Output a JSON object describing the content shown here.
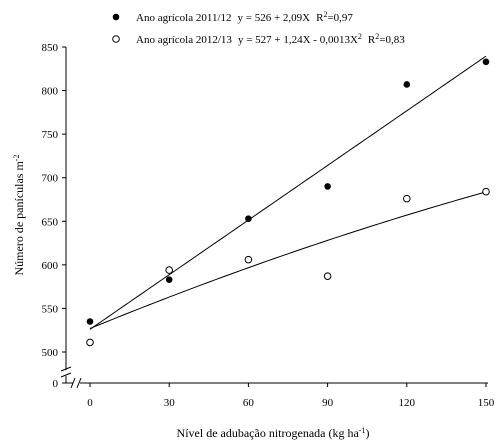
{
  "chart_data": {
    "type": "scatter",
    "xlabel_base": "Nível de adubação nitrogenada (kg ha",
    "xlabel_sup": "-1",
    "xlabel_end": ")",
    "ylabel_base": "Número de panículas m",
    "ylabel_sup": "-2",
    "x_ticks": [
      "0",
      "30",
      "60",
      "90",
      "120",
      "150"
    ],
    "y_ticks": [
      "0",
      "500",
      "550",
      "600",
      "650",
      "700",
      "750",
      "800",
      "850"
    ],
    "xlim": [
      0,
      150
    ],
    "ylim": [
      500,
      850
    ],
    "axis_break": true,
    "legend_position": "top",
    "series": [
      {
        "name": "Ano agrícola 2011/12",
        "marker": "filled-circle",
        "equation": "y = 526 + 2,09X",
        "r2_label": "R",
        "r2_sup": "2",
        "r2_value": "=0,97",
        "x": [
          0,
          30,
          60,
          90,
          120,
          150
        ],
        "y": [
          535,
          583,
          653,
          690,
          807,
          833
        ],
        "fit": {
          "type": "linear",
          "a": 526,
          "b": 2.09
        }
      },
      {
        "name": "Ano agrícola 2012/13",
        "marker": "open-circle",
        "equation_base": "y = 527 + 1,24X - 0,0013X",
        "equation_sup": "2",
        "r2_label": "R",
        "r2_sup": "2",
        "r2_value": "=0,83",
        "x": [
          0,
          30,
          60,
          90,
          120,
          150
        ],
        "y": [
          511,
          594,
          606,
          587,
          676,
          684
        ],
        "fit": {
          "type": "quadratic",
          "a": 527,
          "b": 1.24,
          "c": -0.0013
        }
      }
    ]
  }
}
